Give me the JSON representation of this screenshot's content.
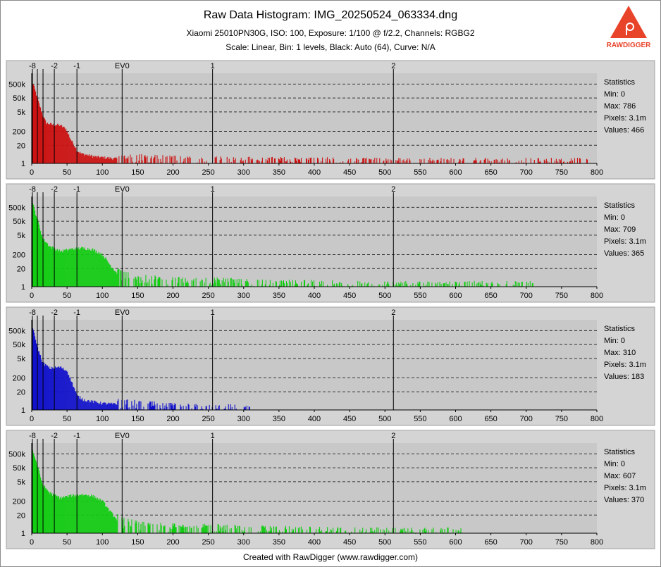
{
  "header": {
    "title": "Raw Data Histogram: IMG_20250524_063334.dng",
    "subtitle1": "Xiaomi 25010PN30G, ISO: 100, Exposure: 1/100 @ f/2.2, Channels: RGBG2",
    "subtitle2": "Scale: Linear, Bin: 1 levels, Black: Auto (64), Curve: N/A"
  },
  "logo": {
    "text": "RAWDIGGER",
    "icon": "rawdigger-logo-icon",
    "color": "#e8442a"
  },
  "footer": "Created with RawDigger (www.rawdigger.com)",
  "chart_data": [
    {
      "type": "bar",
      "channel": "R",
      "color": "#cc1111",
      "xlim": [
        0,
        800
      ],
      "x_ticks": [
        0,
        50,
        100,
        150,
        200,
        250,
        300,
        350,
        400,
        450,
        500,
        550,
        600,
        650,
        700,
        750,
        800
      ],
      "y_scale": "log",
      "y_ticks": [
        {
          "value": 500000,
          "label": "500k"
        },
        {
          "value": 50000,
          "label": "50k"
        },
        {
          "value": 5000,
          "label": "5k"
        },
        {
          "value": 200,
          "label": "200"
        },
        {
          "value": 20,
          "label": "20"
        },
        {
          "value": 1,
          "label": "1"
        }
      ],
      "ev_marks": [
        {
          "x": 1,
          "label": "-8"
        },
        {
          "x": 8,
          "label": ""
        },
        {
          "x": 16,
          "label": ""
        },
        {
          "x": 32,
          "label": "-2"
        },
        {
          "x": 64,
          "label": "-1"
        },
        {
          "x": 128,
          "label": "EV0"
        },
        {
          "x": 256,
          "label": "1"
        },
        {
          "x": 512,
          "label": "2"
        }
      ],
      "profile": {
        "x": [
          0,
          3,
          8,
          15,
          20,
          30,
          40,
          48,
          55,
          60,
          64,
          70,
          90,
          128,
          200,
          300,
          500,
          786
        ],
        "y": [
          800000,
          300000,
          40000,
          3000,
          800,
          600,
          550,
          300,
          50,
          20,
          8,
          5,
          3,
          2,
          1.5,
          1.2,
          1,
          1
        ]
      },
      "statistics": {
        "heading": "Statistics",
        "min": "Min: 0",
        "max": "Max: 786",
        "pixels": "Pixels: 3.1m",
        "values": "Values: 466"
      }
    },
    {
      "type": "bar",
      "channel": "G",
      "color": "#11cc11",
      "xlim": [
        0,
        800
      ],
      "x_ticks": [
        0,
        50,
        100,
        150,
        200,
        250,
        300,
        350,
        400,
        450,
        500,
        550,
        600,
        650,
        700,
        750,
        800
      ],
      "y_scale": "log",
      "y_ticks": [
        {
          "value": 500000,
          "label": "500k"
        },
        {
          "value": 50000,
          "label": "50k"
        },
        {
          "value": 5000,
          "label": "5k"
        },
        {
          "value": 200,
          "label": "200"
        },
        {
          "value": 20,
          "label": "20"
        },
        {
          "value": 1,
          "label": "1"
        }
      ],
      "ev_marks": [
        {
          "x": 1,
          "label": "-8"
        },
        {
          "x": 8,
          "label": ""
        },
        {
          "x": 16,
          "label": ""
        },
        {
          "x": 32,
          "label": "-2"
        },
        {
          "x": 64,
          "label": "-1"
        },
        {
          "x": 128,
          "label": "EV0"
        },
        {
          "x": 256,
          "label": "1"
        },
        {
          "x": 512,
          "label": "2"
        }
      ],
      "profile": {
        "x": [
          0,
          3,
          8,
          15,
          25,
          40,
          55,
          70,
          85,
          100,
          110,
          120,
          130,
          150,
          200,
          260,
          300,
          380,
          500,
          709
        ],
        "y": [
          1500000,
          400000,
          60000,
          3000,
          800,
          350,
          500,
          600,
          500,
          200,
          40,
          10,
          5,
          3,
          2,
          1.8,
          1.5,
          1.2,
          1,
          1
        ]
      },
      "statistics": {
        "heading": "Statistics",
        "min": "Min: 0",
        "max": "Max: 709",
        "pixels": "Pixels: 3.1m",
        "values": "Values: 365"
      }
    },
    {
      "type": "bar",
      "channel": "B",
      "color": "#1111cc",
      "xlim": [
        0,
        800
      ],
      "x_ticks": [
        0,
        50,
        100,
        150,
        200,
        250,
        300,
        350,
        400,
        450,
        500,
        550,
        600,
        650,
        700,
        750,
        800
      ],
      "y_scale": "log",
      "y_ticks": [
        {
          "value": 500000,
          "label": "500k"
        },
        {
          "value": 50000,
          "label": "50k"
        },
        {
          "value": 5000,
          "label": "5k"
        },
        {
          "value": 200,
          "label": "200"
        },
        {
          "value": 20,
          "label": "20"
        },
        {
          "value": 1,
          "label": "1"
        }
      ],
      "ev_marks": [
        {
          "x": 1,
          "label": "-8"
        },
        {
          "x": 8,
          "label": ""
        },
        {
          "x": 16,
          "label": ""
        },
        {
          "x": 32,
          "label": "-2"
        },
        {
          "x": 64,
          "label": "-1"
        },
        {
          "x": 128,
          "label": "EV0"
        },
        {
          "x": 256,
          "label": "1"
        },
        {
          "x": 512,
          "label": "2"
        }
      ],
      "profile": {
        "x": [
          0,
          3,
          8,
          15,
          25,
          40,
          50,
          58,
          64,
          75,
          100,
          150,
          200,
          240,
          310
        ],
        "y": [
          1000000,
          300000,
          30000,
          2500,
          1000,
          1200,
          600,
          60,
          10,
          5,
          3,
          2,
          1.2,
          1,
          1
        ]
      },
      "statistics": {
        "heading": "Statistics",
        "min": "Min: 0",
        "max": "Max: 310",
        "pixels": "Pixels: 3.1m",
        "values": "Values: 183"
      }
    },
    {
      "type": "bar",
      "channel": "G2",
      "color": "#11cc11",
      "xlim": [
        0,
        800
      ],
      "x_ticks": [
        0,
        50,
        100,
        150,
        200,
        250,
        300,
        350,
        400,
        450,
        500,
        550,
        600,
        650,
        700,
        750,
        800
      ],
      "y_scale": "log",
      "y_ticks": [
        {
          "value": 500000,
          "label": "500k"
        },
        {
          "value": 50000,
          "label": "50k"
        },
        {
          "value": 5000,
          "label": "5k"
        },
        {
          "value": 200,
          "label": "200"
        },
        {
          "value": 20,
          "label": "20"
        },
        {
          "value": 1,
          "label": "1"
        }
      ],
      "ev_marks": [
        {
          "x": 1,
          "label": "-8"
        },
        {
          "x": 8,
          "label": ""
        },
        {
          "x": 16,
          "label": ""
        },
        {
          "x": 32,
          "label": "-2"
        },
        {
          "x": 64,
          "label": "-1"
        },
        {
          "x": 128,
          "label": "EV0"
        },
        {
          "x": 256,
          "label": "1"
        },
        {
          "x": 512,
          "label": "2"
        }
      ],
      "profile": {
        "x": [
          0,
          3,
          8,
          15,
          25,
          40,
          55,
          70,
          85,
          100,
          110,
          120,
          130,
          150,
          200,
          260,
          300,
          380,
          500,
          607
        ],
        "y": [
          1500000,
          400000,
          60000,
          3000,
          800,
          350,
          500,
          600,
          500,
          200,
          40,
          10,
          5,
          3,
          2,
          1.8,
          1.5,
          1.2,
          1,
          1
        ]
      },
      "statistics": {
        "heading": "Statistics",
        "min": "Min: 0",
        "max": "Max: 607",
        "pixels": "Pixels: 3.1m",
        "values": "Values: 370"
      }
    }
  ]
}
